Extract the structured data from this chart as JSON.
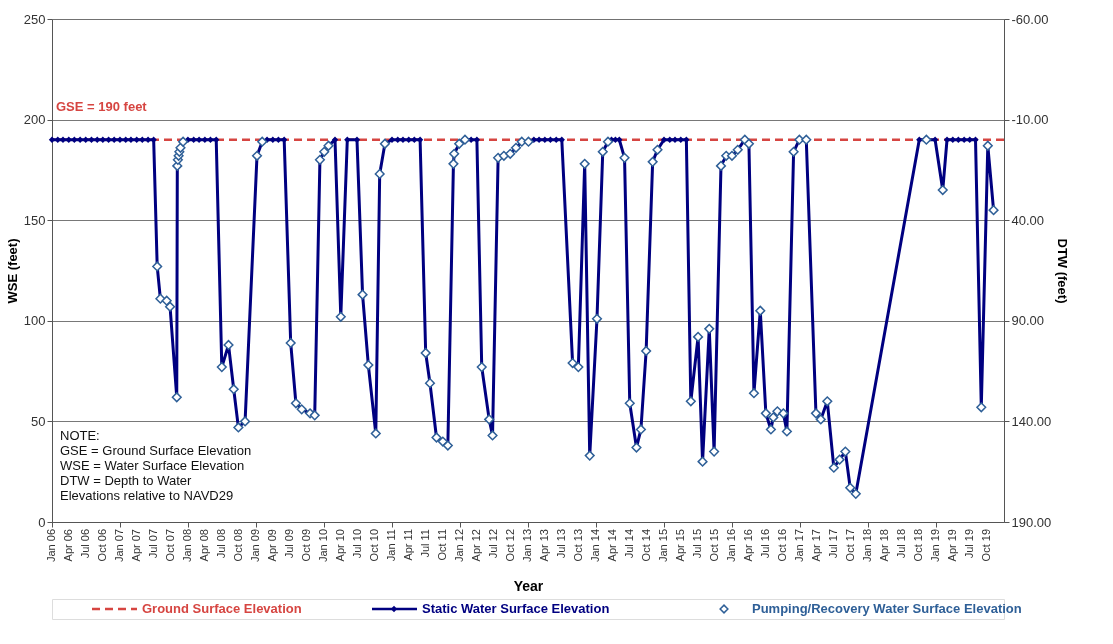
{
  "chart_data": {
    "type": "line",
    "xlabel": "Year",
    "ylabel": "WSE (feet)",
    "y2label": "DTW (feet)",
    "xlim": [
      "2006-01",
      "2020-01"
    ],
    "xticks": [
      {
        "value": "2006-01",
        "label": "Jan 06"
      },
      {
        "value": "2006-04",
        "label": "Apr 06"
      },
      {
        "value": "2006-07",
        "label": "Jul 06"
      },
      {
        "value": "2006-10",
        "label": "Oct 06"
      },
      {
        "value": "2007-01",
        "label": "Jan 07"
      },
      {
        "value": "2007-04",
        "label": "Apr 07"
      },
      {
        "value": "2007-07",
        "label": "Jul 07"
      },
      {
        "value": "2007-10",
        "label": "Oct 07"
      },
      {
        "value": "2008-01",
        "label": "Jan 08"
      },
      {
        "value": "2008-04",
        "label": "Apr 08"
      },
      {
        "value": "2008-07",
        "label": "Jul 08"
      },
      {
        "value": "2008-10",
        "label": "Oct 08"
      },
      {
        "value": "2009-01",
        "label": "Jan 09"
      },
      {
        "value": "2009-04",
        "label": "Apr 09"
      },
      {
        "value": "2009-07",
        "label": "Jul 09"
      },
      {
        "value": "2009-10",
        "label": "Oct 09"
      },
      {
        "value": "2010-01",
        "label": "Jan 10"
      },
      {
        "value": "2010-04",
        "label": "Apr 10"
      },
      {
        "value": "2010-07",
        "label": "Jul 10"
      },
      {
        "value": "2010-10",
        "label": "Oct 10"
      },
      {
        "value": "2011-01",
        "label": "Jan 11"
      },
      {
        "value": "2011-04",
        "label": "Apr 11"
      },
      {
        "value": "2011-07",
        "label": "Jul 11"
      },
      {
        "value": "2011-10",
        "label": "Oct 11"
      },
      {
        "value": "2012-01",
        "label": "Jan 12"
      },
      {
        "value": "2012-04",
        "label": "Apr 12"
      },
      {
        "value": "2012-07",
        "label": "Jul 12"
      },
      {
        "value": "2012-10",
        "label": "Oct 12"
      },
      {
        "value": "2013-01",
        "label": "Jan 13"
      },
      {
        "value": "2013-04",
        "label": "Apr 13"
      },
      {
        "value": "2013-07",
        "label": "Jul 13"
      },
      {
        "value": "2013-10",
        "label": "Oct 13"
      },
      {
        "value": "2014-01",
        "label": "Jan 14"
      },
      {
        "value": "2014-04",
        "label": "Apr 14"
      },
      {
        "value": "2014-07",
        "label": "Jul 14"
      },
      {
        "value": "2014-10",
        "label": "Oct 14"
      },
      {
        "value": "2015-01",
        "label": "Jan 15"
      },
      {
        "value": "2015-04",
        "label": "Apr 15"
      },
      {
        "value": "2015-07",
        "label": "Jul 15"
      },
      {
        "value": "2015-10",
        "label": "Oct 15"
      },
      {
        "value": "2016-01",
        "label": "Jan 16"
      },
      {
        "value": "2016-04",
        "label": "Apr 16"
      },
      {
        "value": "2016-07",
        "label": "Jul 16"
      },
      {
        "value": "2016-10",
        "label": "Oct 16"
      },
      {
        "value": "2017-01",
        "label": "Jan 17"
      },
      {
        "value": "2017-04",
        "label": "Apr 17"
      },
      {
        "value": "2017-07",
        "label": "Jul 17"
      },
      {
        "value": "2017-10",
        "label": "Oct 17"
      },
      {
        "value": "2018-01",
        "label": "Jan 18"
      },
      {
        "value": "2018-04",
        "label": "Apr 18"
      },
      {
        "value": "2018-07",
        "label": "Jul 18"
      },
      {
        "value": "2018-10",
        "label": "Oct 18"
      },
      {
        "value": "2019-01",
        "label": "Jan 19"
      },
      {
        "value": "2019-04",
        "label": "Apr 19"
      },
      {
        "value": "2019-07",
        "label": "Jul 19"
      },
      {
        "value": "2019-10",
        "label": "Oct 19"
      }
    ],
    "ylim": [
      0,
      250
    ],
    "yticks": [
      0,
      50,
      100,
      150,
      200,
      250
    ],
    "y2lim": [
      190,
      -60
    ],
    "y2ticks": [
      {
        "value": -60,
        "label": "-60.00"
      },
      {
        "value": -10,
        "label": "-10.00"
      },
      {
        "value": 40,
        "label": "40.00"
      },
      {
        "value": 90,
        "label": "90.00"
      },
      {
        "value": 140,
        "label": "140.00"
      },
      {
        "value": 190,
        "label": "190.00"
      }
    ],
    "grid": "y",
    "legend": "bottom",
    "marker": "diamond",
    "ref_lines": [
      {
        "axis": "y",
        "value": 190,
        "label": "Ground Surface Elevation",
        "color": "#d64541",
        "line_style": "dashed"
      }
    ],
    "annotations": [
      {
        "text": "GSE = 190 feet",
        "x": "2006-01",
        "y": 190
      },
      "NOTE:",
      "GSE = Ground Surface Elevation",
      "WSE = Water Surface Elevation",
      "DTW = Depth to Water",
      "Elevations relative to NAVD29"
    ],
    "series": [
      {
        "name": "Static Water Surface Elevation",
        "type": "line",
        "color": "#000080",
        "x": [
          "2006-01-01",
          "2006-02-01",
          "2006-03-01",
          "2006-04-01",
          "2006-05-01",
          "2006-06-01",
          "2006-07-01",
          "2006-08-01",
          "2006-09-01",
          "2006-10-01",
          "2006-11-01",
          "2006-12-01",
          "2007-01-01",
          "2007-02-01",
          "2007-03-01",
          "2007-04-01",
          "2007-05-01",
          "2007-06-01",
          "2007-07-01",
          "2007-07-20",
          "2007-08-06",
          "2007-09-09",
          "2007-09-27",
          "2007-11-02",
          "2007-11-05",
          "2007-11-08",
          "2007-11-12",
          "2007-11-16",
          "2007-11-22",
          "2007-12-06",
          "2008-01-01",
          "2008-02-01",
          "2008-03-01",
          "2008-04-01",
          "2008-05-01",
          "2008-06-01",
          "2008-07-01",
          "2008-08-06",
          "2008-09-03",
          "2008-09-28",
          "2008-11-03",
          "2009-01-06",
          "2009-02-03",
          "2009-03-01",
          "2009-04-01",
          "2009-05-01",
          "2009-06-01",
          "2009-07-06",
          "2009-08-03",
          "2009-09-03",
          "2009-10-18",
          "2009-11-12",
          "2009-12-10",
          "2010-01-02",
          "2010-01-25",
          "2010-03-01",
          "2010-04-01",
          "2010-05-06",
          "2010-06-27",
          "2010-07-27",
          "2010-08-27",
          "2010-10-06",
          "2010-10-27",
          "2010-11-24",
          "2011-01-01",
          "2011-02-01",
          "2011-03-01",
          "2011-04-01",
          "2011-05-01",
          "2011-06-01",
          "2011-07-01",
          "2011-07-24",
          "2011-08-28",
          "2011-10-01",
          "2011-10-28",
          "2011-11-27",
          "2011-12-01",
          "2011-12-28",
          "2012-01-28",
          "2012-03-01",
          "2012-04-01",
          "2012-04-27",
          "2012-06-06",
          "2012-06-24",
          "2012-07-24",
          "2012-08-24",
          "2012-09-27",
          "2012-10-28",
          "2012-11-28",
          "2013-01-03",
          "2013-02-01",
          "2013-03-01",
          "2013-04-01",
          "2013-05-01",
          "2013-06-01",
          "2013-07-01",
          "2013-08-28",
          "2013-09-28",
          "2013-11-01",
          "2013-11-28",
          "2014-01-06",
          "2014-02-06",
          "2014-03-06",
          "2014-03-25",
          "2014-04-15",
          "2014-05-06",
          "2014-06-03",
          "2014-07-01",
          "2014-08-06",
          "2014-08-30",
          "2014-09-27",
          "2014-11-01",
          "2014-11-27",
          "2015-01-01",
          "2015-02-01",
          "2015-03-01",
          "2015-04-01",
          "2015-05-01",
          "2015-05-25",
          "2015-07-03",
          "2015-07-27",
          "2015-09-01",
          "2015-09-27",
          "2015-11-03",
          "2015-12-01",
          "2016-01-01",
          "2016-02-01",
          "2016-03-10",
          "2016-04-01",
          "2016-04-28",
          "2016-06-01",
          "2016-07-01",
          "2016-07-28",
          "2016-08-10",
          "2016-09-01",
          "2016-10-03",
          "2016-10-22",
          "2016-11-27",
          "2016-12-28",
          "2017-02-03",
          "2017-03-27",
          "2017-04-22",
          "2017-05-27",
          "2017-07-01",
          "2017-08-01",
          "2017-09-01",
          "2017-09-27",
          "2017-10-27",
          "2018-10-03",
          "2018-11-10",
          "2018-12-27",
          "2019-02-06",
          "2019-03-01",
          "2019-04-01",
          "2019-05-01",
          "2019-06-01",
          "2019-07-01",
          "2019-08-01",
          "2019-09-01",
          "2019-10-06",
          "2019-11-06"
        ],
        "values": [
          190,
          190,
          190,
          190,
          190,
          190,
          190,
          190,
          190,
          190,
          190,
          190,
          190,
          190,
          190,
          190,
          190,
          190,
          190,
          127,
          111,
          110,
          107,
          62,
          177,
          180,
          182,
          184,
          186,
          189,
          190,
          190,
          190,
          190,
          190,
          190,
          77,
          88,
          66,
          47,
          50,
          182,
          189,
          190,
          190,
          190,
          190,
          89,
          59,
          56,
          54,
          53,
          180,
          184,
          187,
          190,
          102,
          190,
          190,
          113,
          78,
          44,
          173,
          188,
          190,
          190,
          190,
          190,
          190,
          190,
          84,
          69,
          42,
          40,
          38,
          178,
          183,
          188,
          190,
          190,
          190,
          77,
          51,
          43,
          181,
          182,
          183,
          186,
          189,
          189,
          190,
          190,
          190,
          190,
          190,
          190,
          79,
          77,
          178,
          33,
          101,
          184,
          189,
          190,
          190,
          190,
          181,
          59,
          37,
          46,
          85,
          179,
          185,
          190,
          190,
          190,
          190,
          190,
          60,
          92,
          30,
          96,
          35,
          177,
          182,
          182,
          185,
          190,
          188,
          64,
          105,
          54,
          46,
          52,
          55,
          54,
          45,
          184,
          190,
          190,
          54,
          51,
          60,
          27,
          31,
          35,
          17,
          14,
          190,
          190,
          190,
          165,
          190,
          190,
          190,
          190,
          190,
          190,
          57,
          187,
          155
        ]
      },
      {
        "name": "Pumping/Recovery Water Surface Elevation",
        "type": "scatter",
        "color": "#2e5f97",
        "x": [
          "2007-07-20",
          "2007-08-06",
          "2007-09-09",
          "2007-09-27",
          "2007-11-02",
          "2007-11-05",
          "2007-11-08",
          "2007-11-12",
          "2007-11-16",
          "2007-11-22",
          "2007-12-06",
          "2008-07-01",
          "2008-08-06",
          "2008-09-03",
          "2008-09-28",
          "2008-11-03",
          "2009-01-06",
          "2009-02-03",
          "2009-07-06",
          "2009-08-03",
          "2009-09-03",
          "2009-10-18",
          "2009-11-12",
          "2009-12-10",
          "2010-01-02",
          "2010-01-25",
          "2010-04-01",
          "2010-07-27",
          "2010-08-27",
          "2010-10-06",
          "2010-10-27",
          "2010-11-24",
          "2011-07-01",
          "2011-07-24",
          "2011-08-28",
          "2011-10-01",
          "2011-10-28",
          "2011-11-27",
          "2011-12-01",
          "2011-12-28",
          "2012-01-28",
          "2012-04-27",
          "2012-06-06",
          "2012-06-24",
          "2012-07-24",
          "2012-08-24",
          "2012-09-27",
          "2012-10-28",
          "2012-11-28",
          "2013-01-03",
          "2013-08-28",
          "2013-09-28",
          "2013-11-01",
          "2013-11-28",
          "2014-01-06",
          "2014-02-06",
          "2014-03-06",
          "2014-06-03",
          "2014-07-01",
          "2014-08-06",
          "2014-08-30",
          "2014-09-27",
          "2014-11-01",
          "2014-11-27",
          "2015-05-25",
          "2015-07-03",
          "2015-07-27",
          "2015-09-01",
          "2015-09-27",
          "2015-11-03",
          "2015-12-01",
          "2016-01-01",
          "2016-02-01",
          "2016-03-10",
          "2016-04-01",
          "2016-04-28",
          "2016-06-01",
          "2016-07-01",
          "2016-07-28",
          "2016-08-10",
          "2016-09-01",
          "2016-10-03",
          "2016-10-22",
          "2016-11-27",
          "2016-12-28",
          "2017-02-03",
          "2017-03-27",
          "2017-04-22",
          "2017-05-27",
          "2017-07-01",
          "2017-08-01",
          "2017-09-01",
          "2017-09-27",
          "2017-10-27",
          "2018-11-10",
          "2019-02-06",
          "2019-09-01",
          "2019-10-06",
          "2019-11-06"
        ],
        "values": [
          127,
          111,
          110,
          107,
          62,
          177,
          180,
          182,
          184,
          186,
          189,
          77,
          88,
          66,
          47,
          50,
          182,
          189,
          89,
          59,
          56,
          54,
          53,
          180,
          184,
          187,
          102,
          113,
          78,
          44,
          173,
          188,
          84,
          69,
          42,
          40,
          38,
          178,
          183,
          188,
          190,
          77,
          51,
          43,
          181,
          182,
          183,
          186,
          189,
          189,
          79,
          77,
          178,
          33,
          101,
          184,
          189,
          181,
          59,
          37,
          46,
          85,
          179,
          185,
          60,
          92,
          30,
          96,
          35,
          177,
          182,
          182,
          185,
          190,
          188,
          64,
          105,
          54,
          46,
          52,
          55,
          54,
          45,
          184,
          190,
          190,
          54,
          51,
          60,
          27,
          31,
          35,
          17,
          14,
          190,
          165,
          57,
          187,
          155
        ]
      }
    ]
  }
}
